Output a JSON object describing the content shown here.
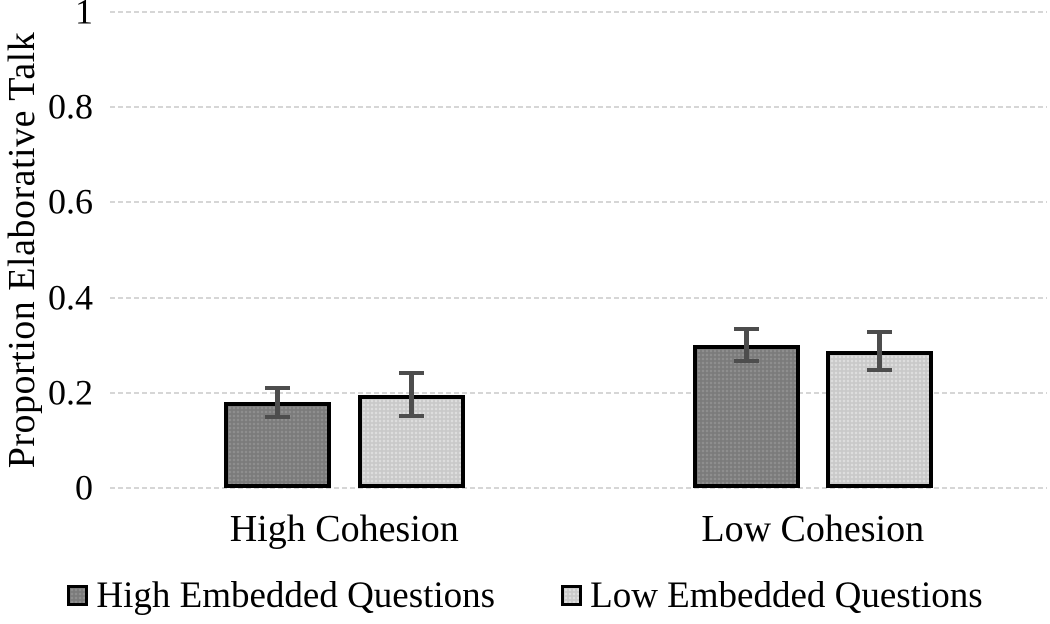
{
  "chart_data": {
    "type": "bar",
    "ylabel": "Proportion Elaborative Talk",
    "ylim": [
      0,
      1
    ],
    "yticks": [
      0,
      0.2,
      0.4,
      0.6,
      0.8,
      1
    ],
    "ytick_labels": [
      "0",
      "0.2",
      "0.4",
      "0.6",
      "0.8",
      "1"
    ],
    "grid": "horizontal-dashed",
    "legend_position": "bottom",
    "categories": [
      "High Cohesion",
      "Low Cohesion"
    ],
    "series": [
      {
        "name": "High Embedded Questions",
        "values": [
          0.18,
          0.3
        ],
        "errors": [
          0.031,
          0.034
        ],
        "fill": "#7b7b7b",
        "pattern_dot": "#8f8f8f"
      },
      {
        "name": "Low Embedded Questions",
        "values": [
          0.196,
          0.287
        ],
        "errors": [
          0.045,
          0.04
        ],
        "fill": "#c9c9c9",
        "pattern_dot": "#dedede"
      }
    ],
    "colors": {
      "bar_border": "#000000",
      "error_bar": "#4d4d4d",
      "gridline": "#d6d6d6",
      "text": "#000000"
    }
  }
}
